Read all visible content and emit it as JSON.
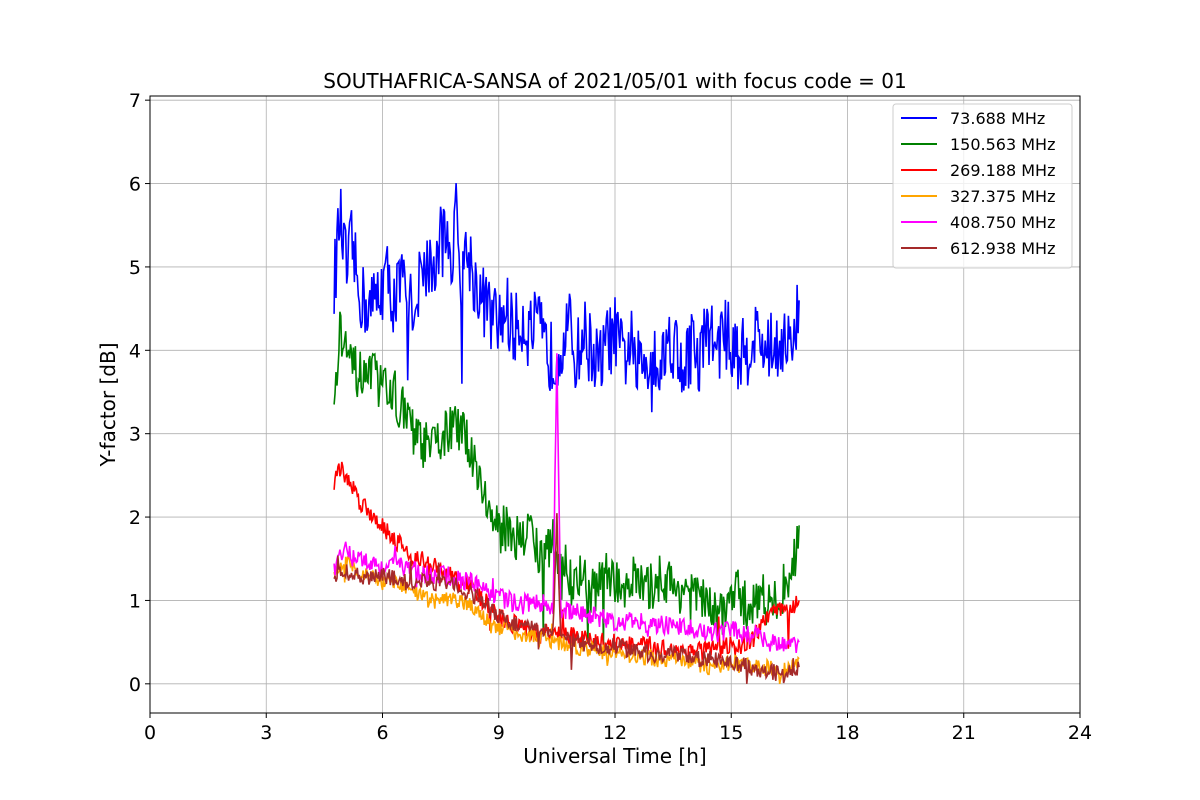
{
  "chart_data": {
    "type": "line",
    "title": "SOUTHAFRICA-SANSA of 2021/05/01 with focus code = 01",
    "xlabel": "Universal Time [h]",
    "ylabel": "Y-factor [dB]",
    "xlim": [
      0,
      24
    ],
    "ylim": [
      -0.35,
      7.05
    ],
    "xticks": [
      0,
      3,
      6,
      9,
      12,
      15,
      18,
      21,
      24
    ],
    "yticks": [
      0,
      1,
      2,
      3,
      4,
      5,
      6,
      7
    ],
    "grid": true,
    "legend_position": "top-right",
    "series": [
      {
        "name": " 73.688 MHz",
        "color": "#0000ff",
        "x": [
          4.75,
          4.9,
          5.0,
          5.1,
          5.2,
          5.35,
          5.5,
          5.7,
          5.9,
          6.1,
          6.3,
          6.5,
          6.7,
          6.9,
          7.1,
          7.3,
          7.5,
          7.7,
          7.8,
          7.9,
          8.0,
          8.2,
          8.4,
          8.6,
          8.8,
          9.0,
          9.2,
          9.4,
          9.6,
          9.8,
          10.0,
          10.2,
          10.4,
          10.6,
          10.8,
          11.0,
          11.2,
          11.4,
          11.6,
          11.8,
          12.0,
          12.2,
          12.4,
          12.6,
          12.8,
          13.0,
          13.2,
          13.4,
          13.6,
          13.8,
          14.0,
          14.2,
          14.4,
          14.6,
          14.8,
          15.0,
          15.2,
          15.4,
          15.6,
          15.8,
          16.0,
          16.2,
          16.4,
          16.6,
          16.75
        ],
        "y": [
          4.8,
          5.6,
          5.2,
          4.9,
          5.3,
          4.8,
          4.6,
          4.5,
          4.7,
          4.9,
          4.6,
          4.8,
          4.5,
          4.7,
          5.1,
          4.9,
          5.3,
          5.4,
          5.1,
          5.6,
          4.9,
          5.2,
          4.8,
          4.6,
          4.4,
          4.3,
          4.5,
          4.2,
          4.4,
          4.2,
          4.3,
          4.0,
          3.9,
          4.1,
          4.3,
          3.9,
          4.2,
          4.0,
          3.8,
          4.1,
          4.2,
          3.9,
          4.1,
          3.8,
          3.9,
          4.0,
          3.8,
          4.2,
          4.0,
          3.8,
          4.1,
          3.9,
          4.3,
          4.0,
          4.2,
          4.1,
          3.9,
          4.0,
          4.2,
          4.1,
          4.0,
          4.1,
          4.2,
          3.9,
          4.6
        ]
      },
      {
        "name": "150.563 MHz",
        "color": "#008000",
        "x": [
          4.75,
          4.9,
          5.0,
          5.2,
          5.4,
          5.6,
          5.8,
          6.0,
          6.2,
          6.4,
          6.6,
          6.8,
          7.0,
          7.2,
          7.4,
          7.6,
          7.8,
          8.0,
          8.2,
          8.4,
          8.6,
          8.8,
          9.0,
          9.2,
          9.4,
          9.6,
          9.8,
          10.0,
          10.2,
          10.4,
          10.6,
          10.8,
          11.0,
          11.2,
          11.4,
          11.6,
          11.8,
          12.0,
          12.2,
          12.4,
          12.6,
          12.8,
          13.0,
          13.2,
          13.4,
          13.6,
          13.8,
          14.0,
          14.2,
          14.4,
          14.6,
          14.8,
          15.0,
          15.2,
          15.4,
          15.6,
          15.8,
          16.0,
          16.2,
          16.4,
          16.6,
          16.75
        ],
        "y": [
          3.3,
          4.2,
          4.1,
          3.8,
          3.7,
          3.6,
          3.7,
          3.5,
          3.6,
          3.4,
          3.2,
          3.0,
          2.9,
          2.8,
          2.9,
          3.0,
          3.1,
          3.0,
          2.9,
          2.7,
          2.3,
          2.0,
          1.8,
          1.9,
          1.8,
          1.7,
          1.9,
          1.6,
          1.5,
          1.7,
          1.3,
          1.2,
          1.3,
          1.2,
          1.1,
          1.2,
          1.3,
          1.2,
          1.1,
          1.3,
          1.2,
          1.1,
          1.2,
          1.3,
          1.2,
          1.1,
          1.2,
          1.0,
          1.1,
          0.9,
          0.8,
          0.9,
          1.0,
          1.1,
          0.9,
          1.0,
          1.1,
          0.9,
          1.0,
          1.2,
          1.4,
          1.9
        ]
      },
      {
        "name": "269.188 MHz",
        "color": "#ff0000",
        "x": [
          4.75,
          4.9,
          5.0,
          5.2,
          5.4,
          5.6,
          5.8,
          6.0,
          6.2,
          6.4,
          6.6,
          6.8,
          7.0,
          7.2,
          7.4,
          7.6,
          7.8,
          8.0,
          8.2,
          8.4,
          8.6,
          8.8,
          9.0,
          9.5,
          10.0,
          10.5,
          11.0,
          11.5,
          12.0,
          12.5,
          13.0,
          13.5,
          14.0,
          14.5,
          15.0,
          15.5,
          15.8,
          16.0,
          16.2,
          16.4,
          16.6,
          16.75
        ],
        "y": [
          2.4,
          2.6,
          2.5,
          2.4,
          2.2,
          2.1,
          2.0,
          1.9,
          1.8,
          1.7,
          1.6,
          1.5,
          1.5,
          1.4,
          1.4,
          1.3,
          1.3,
          1.2,
          1.2,
          1.1,
          1.0,
          0.9,
          0.8,
          0.7,
          0.6,
          0.6,
          0.55,
          0.5,
          0.5,
          0.45,
          0.45,
          0.4,
          0.4,
          0.4,
          0.45,
          0.5,
          0.7,
          0.8,
          0.9,
          0.85,
          0.95,
          1.0
        ]
      },
      {
        "name": "327.375 MHz",
        "color": "#ffa500",
        "x": [
          4.75,
          5.0,
          5.3,
          5.6,
          6.0,
          6.4,
          6.8,
          7.2,
          7.6,
          8.0,
          8.4,
          8.8,
          9.2,
          9.6,
          10.0,
          10.5,
          11.0,
          11.5,
          12.0,
          12.5,
          13.0,
          13.5,
          14.0,
          14.5,
          15.0,
          15.5,
          16.0,
          16.4,
          16.75
        ],
        "y": [
          1.3,
          1.5,
          1.4,
          1.3,
          1.2,
          1.2,
          1.1,
          1.0,
          1.0,
          1.0,
          0.9,
          0.7,
          0.65,
          0.6,
          0.55,
          0.5,
          0.45,
          0.4,
          0.35,
          0.35,
          0.3,
          0.3,
          0.25,
          0.2,
          0.25,
          0.2,
          0.2,
          0.15,
          0.3
        ]
      },
      {
        "name": "408.750 MHz",
        "color": "#ff00ff",
        "x": [
          4.75,
          5.0,
          5.3,
          5.6,
          6.0,
          6.4,
          6.8,
          7.2,
          7.6,
          8.0,
          8.4,
          8.8,
          9.2,
          9.6,
          10.0,
          10.4,
          10.5,
          10.6,
          11.0,
          11.5,
          12.0,
          12.5,
          13.0,
          13.5,
          14.0,
          14.5,
          15.0,
          15.5,
          16.0,
          16.4,
          16.75
        ],
        "y": [
          1.4,
          1.6,
          1.5,
          1.5,
          1.4,
          1.45,
          1.35,
          1.3,
          1.3,
          1.25,
          1.2,
          1.1,
          1.0,
          0.95,
          1.0,
          0.9,
          3.9,
          0.9,
          0.85,
          0.8,
          0.75,
          0.75,
          0.7,
          0.7,
          0.65,
          0.6,
          0.65,
          0.6,
          0.5,
          0.45,
          0.5
        ]
      },
      {
        "name": "612.938 MHz",
        "color": "#a52a2a",
        "x": [
          4.75,
          5.0,
          5.3,
          5.6,
          6.0,
          6.4,
          6.7,
          7.0,
          7.4,
          7.8,
          8.2,
          8.6,
          8.8,
          9.2,
          9.6,
          10.0,
          10.4,
          10.5,
          10.6,
          11.0,
          11.5,
          12.0,
          12.5,
          13.0,
          13.5,
          14.0,
          14.5,
          15.0,
          15.5,
          16.0,
          16.4,
          16.75
        ],
        "y": [
          1.3,
          1.35,
          1.3,
          1.25,
          1.3,
          1.25,
          1.2,
          1.25,
          1.2,
          1.2,
          1.1,
          1.0,
          0.9,
          0.75,
          0.7,
          0.65,
          0.6,
          2.0,
          0.55,
          0.5,
          0.45,
          0.45,
          0.4,
          0.35,
          0.35,
          0.3,
          0.3,
          0.25,
          0.2,
          0.15,
          0.1,
          0.2
        ]
      }
    ]
  }
}
